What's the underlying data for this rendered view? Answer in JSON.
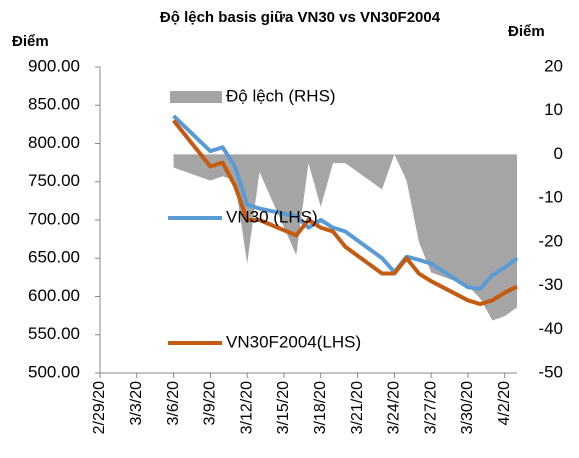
{
  "chart_data": {
    "type": "line",
    "title": "Độ lệch basis giữa VN30 vs VN30F2004",
    "y_label": "Điểm",
    "y2_label": "Điểm",
    "x": [
      "3/6/20",
      "3/9/20",
      "3/10/20",
      "3/11/20",
      "3/12/20",
      "3/13/20",
      "3/16/20",
      "3/17/20",
      "3/18/20",
      "3/19/20",
      "3/20/20",
      "3/23/20",
      "3/24/20",
      "3/25/20",
      "3/26/20",
      "3/27/20",
      "3/30/20",
      "3/31/20",
      "4/1/20",
      "4/2/20",
      "4/3/20"
    ],
    "xlim": [
      "2/29/20",
      "4/3/20"
    ],
    "xticks": [
      "2/29/20",
      "3/3/20",
      "3/6/20",
      "3/9/20",
      "3/12/20",
      "3/15/20",
      "3/18/20",
      "3/21/20",
      "3/24/20",
      "3/27/20",
      "3/30/20",
      "4/2/20"
    ],
    "ylim": [
      500,
      900
    ],
    "yticks": [
      {
        "value": 500,
        "label": "500.00"
      },
      {
        "value": 550,
        "label": "550.00"
      },
      {
        "value": 600,
        "label": "600.00"
      },
      {
        "value": 650,
        "label": "650.00"
      },
      {
        "value": 700,
        "label": "700.00"
      },
      {
        "value": 750,
        "label": "750.00"
      },
      {
        "value": 800,
        "label": "800.00"
      },
      {
        "value": 850,
        "label": "850.00"
      },
      {
        "value": 900,
        "label": "900.00"
      }
    ],
    "y2lim": [
      -50,
      20
    ],
    "y2ticks": [
      -50,
      -40,
      -30,
      -20,
      -10,
      0,
      10,
      20
    ],
    "grid": false,
    "series": [
      {
        "name": "Độ lệch (RHS)",
        "type": "area",
        "axis": "y2",
        "color": "#a5a5a5",
        "values": [
          -3,
          -6,
          -5,
          -6,
          -25,
          -4,
          -23,
          -2,
          -12,
          -2,
          -2,
          -8,
          0,
          -6,
          -20,
          -27,
          -30,
          -33,
          -38,
          -37,
          -35
        ]
      },
      {
        "name": "VN30 (LHS)",
        "color": "#5b9bd5",
        "values": [
          836,
          790,
          795,
          770,
          720,
          715,
          705,
          690,
          700,
          690,
          685,
          650,
          632,
          652,
          648,
          643,
          612,
          610,
          628,
          638,
          650
        ]
      },
      {
        "name": "VN30F2004(LHS)",
        "color": "#c55a11",
        "values": [
          830,
          770,
          775,
          745,
          700,
          700,
          680,
          700,
          690,
          685,
          665,
          630,
          630,
          650,
          630,
          620,
          595,
          590,
          595,
          605,
          613
        ]
      }
    ]
  }
}
